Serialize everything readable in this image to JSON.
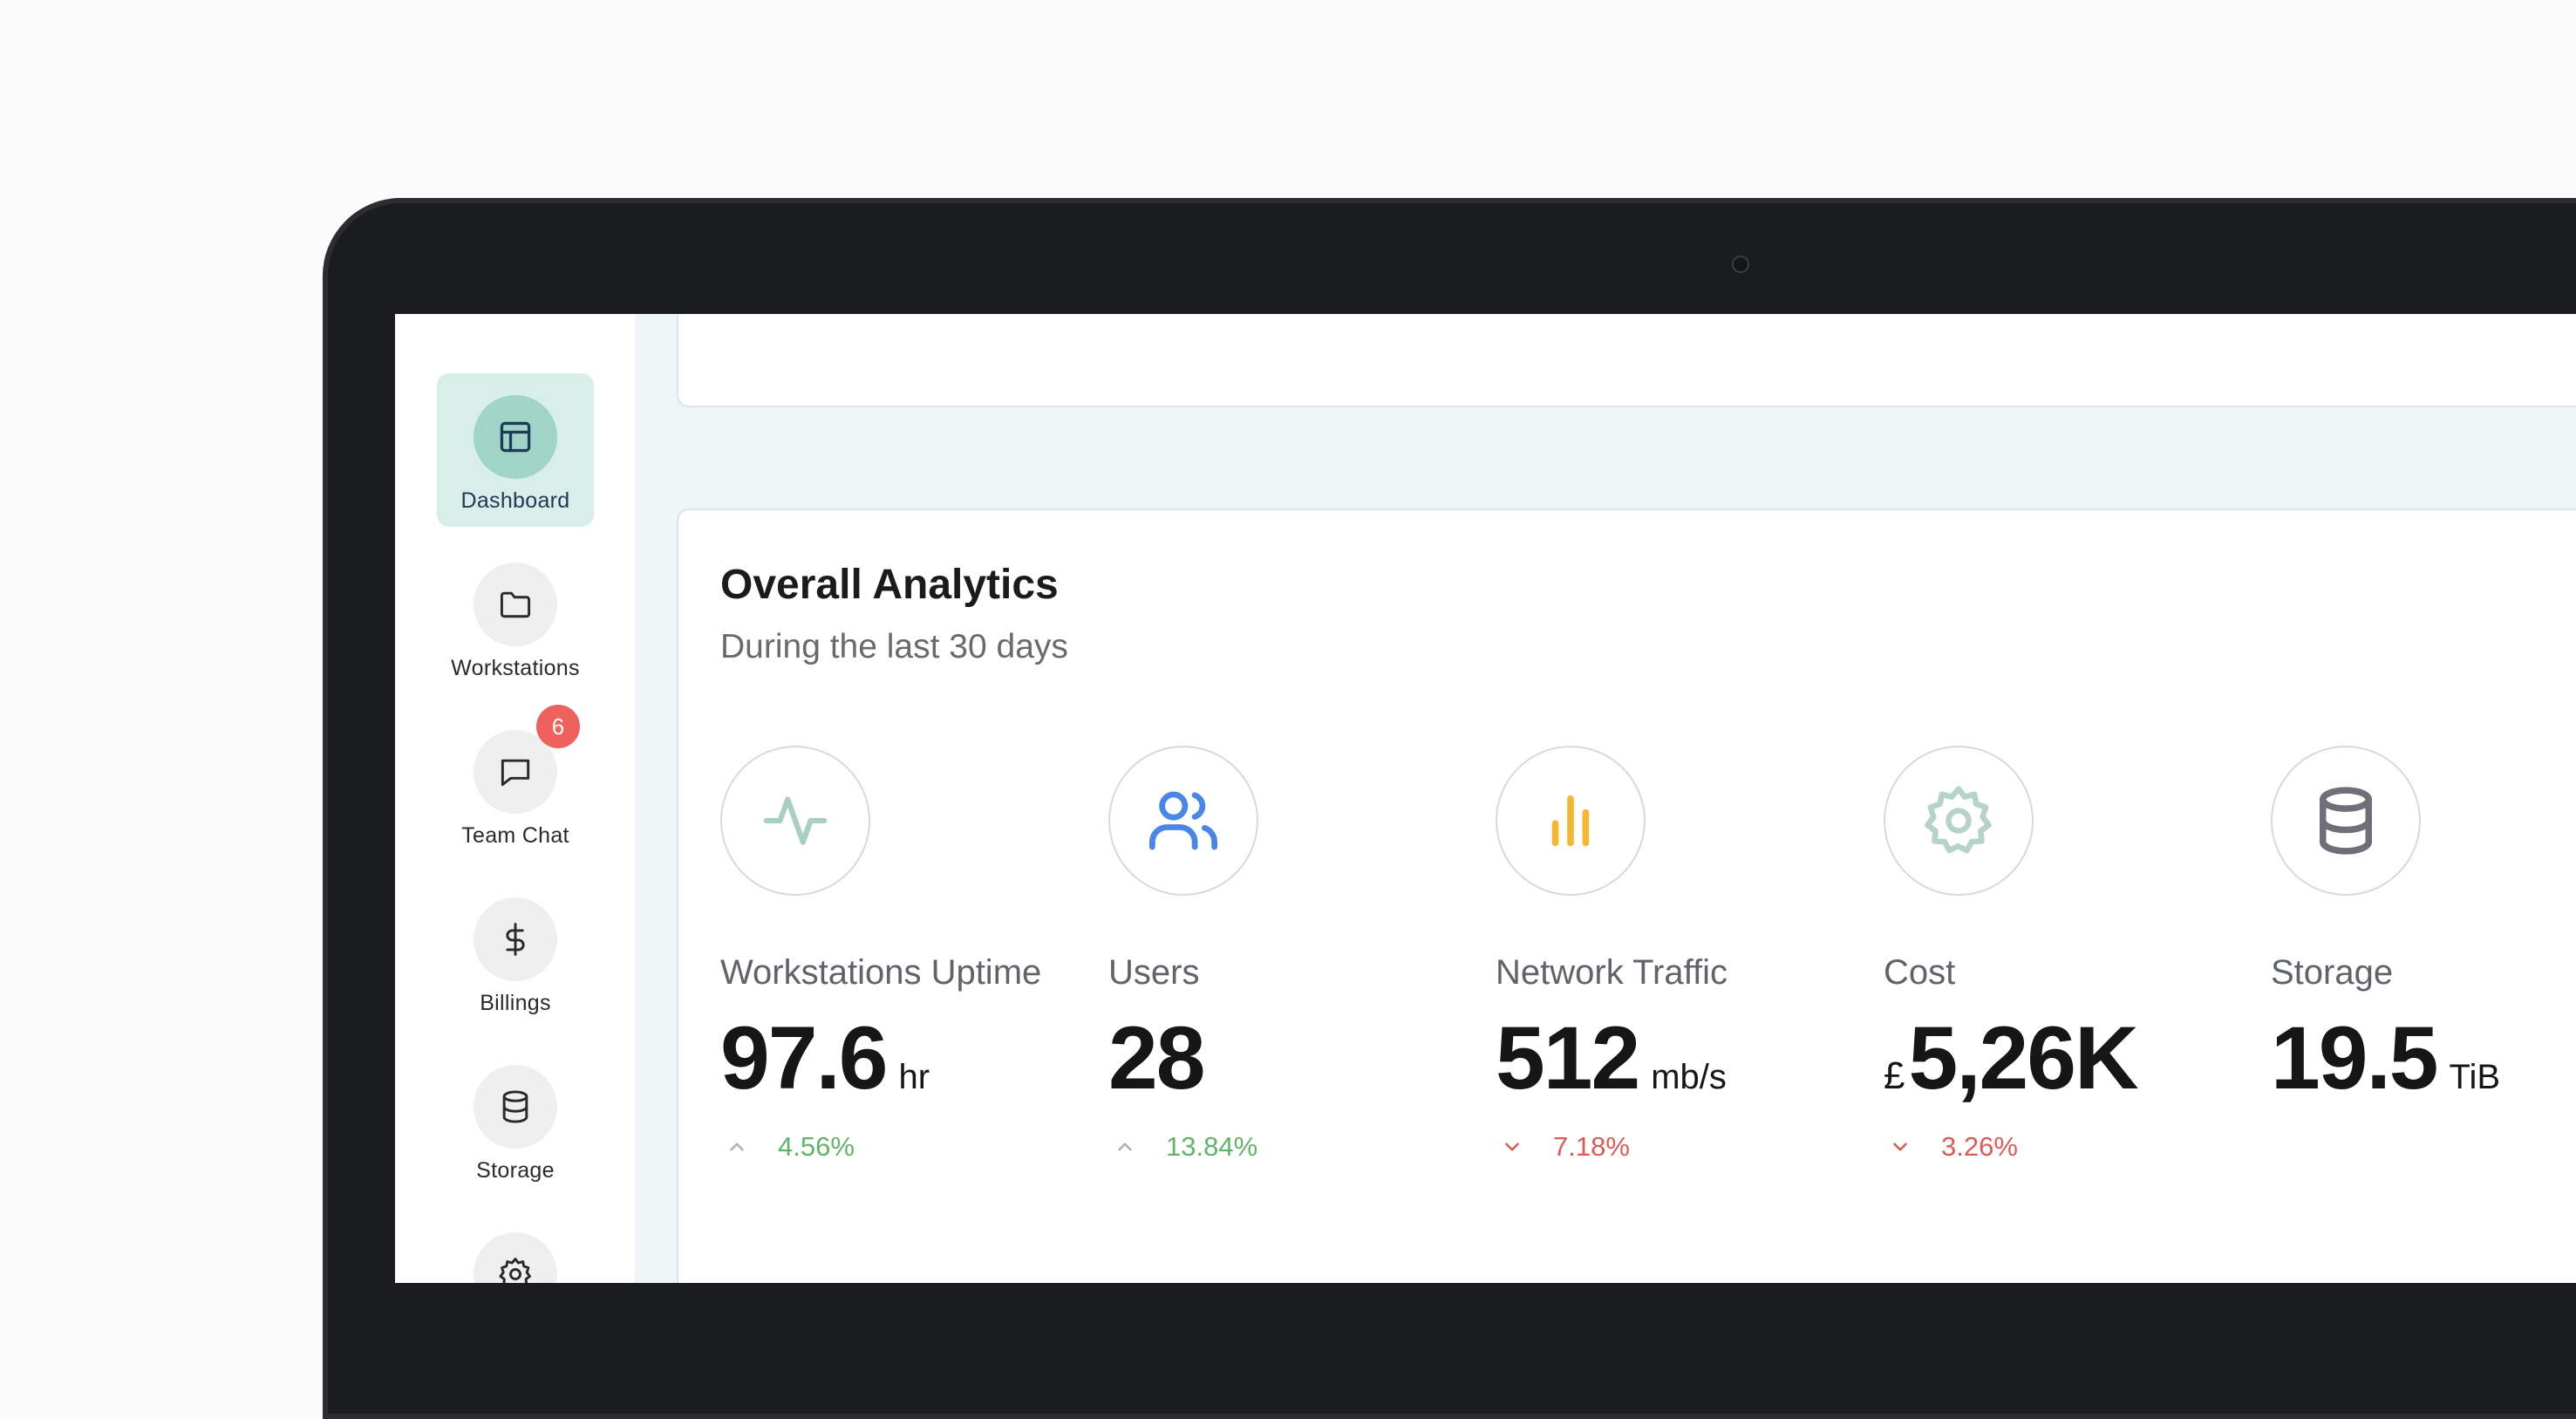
{
  "sidebar": {
    "items": [
      {
        "label": "Dashboard",
        "icon": "layout-icon",
        "active": true
      },
      {
        "label": "Workstations",
        "icon": "folder-icon"
      },
      {
        "label": "Team Chat",
        "icon": "chat-icon",
        "badge": "6"
      },
      {
        "label": "Billings",
        "icon": "dollar-icon"
      },
      {
        "label": "Storage",
        "icon": "database-icon"
      },
      {
        "label": "",
        "icon": "settings-icon"
      }
    ]
  },
  "analytics": {
    "title": "Overall Analytics",
    "subtitle": "During the last 30 days",
    "metrics": [
      {
        "label": "Workstations Uptime",
        "value": "97.6",
        "unit": "hr",
        "change": "4.56%",
        "trend": "up",
        "icon": "activity-icon",
        "icon_color": "#a9cfc3"
      },
      {
        "label": "Users",
        "value": "28",
        "unit": "",
        "change": "13.84%",
        "trend": "up",
        "icon": "users-icon",
        "icon_color": "#4a86e8"
      },
      {
        "label": "Network Traffic",
        "value": "512",
        "unit": "mb/s",
        "change": "7.18%",
        "trend": "down",
        "icon": "bar-chart-icon",
        "icon_color": "#f5b731"
      },
      {
        "label": "Cost",
        "prefix": "£",
        "value": "5,26K",
        "unit": "",
        "change": "3.26%",
        "trend": "down",
        "icon": "gear-icon",
        "icon_color": "#b5d3c9"
      },
      {
        "label": "Storage",
        "value": "19.5",
        "unit": "TiB",
        "icon": "database-icon",
        "icon_color": "#6e6f78"
      }
    ]
  },
  "colors": {
    "accent": "#9fd4c6",
    "accent_bg": "#d8eee9",
    "up": "#63b46b",
    "down": "#e05a55",
    "badge": "#ee615c"
  }
}
